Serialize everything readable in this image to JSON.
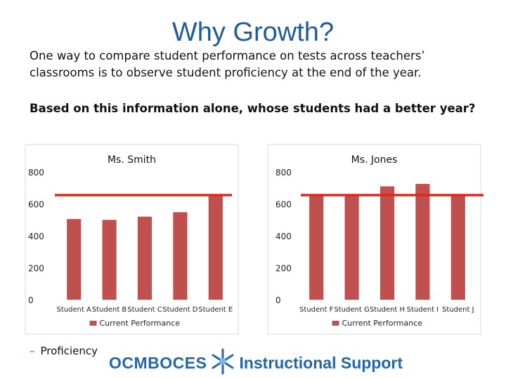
{
  "slide": {
    "title": "Why Growth?",
    "paragraph1": "One way to compare student performance on tests across teachers’ classrooms is to observe student proficiency at the end of the year.",
    "paragraph2": "Based on this information alone, whose students had a better year?",
    "legend_line_label": "Proficiency",
    "logo_left": "OCMBOCES",
    "logo_right": "Instructional Support"
  },
  "colors": {
    "bar": "#c0504d",
    "proficiency_line": "#e3261c",
    "title": "#1f5c99",
    "logo": "#2466a8"
  },
  "chart_data": [
    {
      "type": "bar",
      "title": "Ms. Smith",
      "categories": [
        "Student A",
        "Student B",
        "Student C",
        "Student D",
        "Student E"
      ],
      "series": [
        {
          "name": "Current Performance",
          "values": [
            505,
            500,
            520,
            548,
            660
          ]
        }
      ],
      "ylim": [
        0,
        800
      ],
      "yticks": [
        0,
        200,
        400,
        600,
        800
      ],
      "grid": false,
      "legend_position": "bottom",
      "reference_line": {
        "value": 655,
        "label": "Proficiency"
      }
    },
    {
      "type": "bar",
      "title": "Ms. Jones",
      "categories": [
        "Student F",
        "Student G",
        "Student H",
        "Student I",
        "Student J"
      ],
      "series": [
        {
          "name": "Current Performance",
          "values": [
            660,
            660,
            710,
            725,
            660
          ]
        }
      ],
      "ylim": [
        0,
        800
      ],
      "yticks": [
        0,
        200,
        400,
        600,
        800
      ],
      "grid": false,
      "legend_position": "bottom",
      "reference_line": {
        "value": 655,
        "label": "Proficiency"
      }
    }
  ]
}
